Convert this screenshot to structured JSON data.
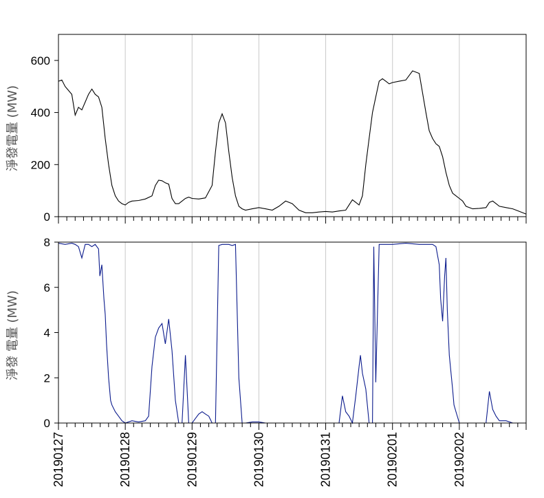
{
  "chart_data": [
    {
      "type": "line",
      "ylabel": "淨發電量 (MW)",
      "ylim": [
        0,
        700
      ],
      "yticks": [
        0,
        200,
        400,
        600
      ],
      "xlim": [
        0,
        7
      ],
      "grid": "vertical at each day",
      "line_color": "#000000",
      "series": [
        {
          "x": [
            0,
            0.05,
            0.1,
            0.2,
            0.25,
            0.3,
            0.35,
            0.4,
            0.45,
            0.5,
            0.55,
            0.6,
            0.65,
            0.7,
            0.75,
            0.8,
            0.85,
            0.9,
            0.95,
            1.0,
            1.05,
            1.1,
            1.2,
            1.3,
            1.4,
            1.45,
            1.5,
            1.55,
            1.6,
            1.65,
            1.7,
            1.75,
            1.8,
            1.85,
            1.9,
            1.95,
            2.0,
            2.1,
            2.2,
            2.3,
            2.35,
            2.4,
            2.45,
            2.5,
            2.55,
            2.6,
            2.65,
            2.7,
            2.75,
            2.8,
            2.9,
            3.0,
            3.1,
            3.2,
            3.3,
            3.4,
            3.5,
            3.6,
            3.7,
            3.8,
            3.9,
            4.0,
            4.1,
            4.2,
            4.3,
            4.4,
            4.45,
            4.5,
            4.55,
            4.6,
            4.65,
            4.7,
            4.75,
            4.8,
            4.85,
            4.9,
            4.95,
            5.0,
            5.1,
            5.2,
            5.3,
            5.4,
            5.5,
            5.55,
            5.6,
            5.65,
            5.7,
            5.75,
            5.8,
            5.85,
            5.9,
            5.95,
            6.0,
            6.05,
            6.1,
            6.2,
            6.3,
            6.4,
            6.45,
            6.5,
            6.55,
            6.6,
            6.7,
            6.8,
            6.9,
            7.0
          ],
          "y": [
            520,
            525,
            500,
            470,
            390,
            420,
            410,
            440,
            470,
            490,
            470,
            460,
            420,
            300,
            200,
            120,
            80,
            60,
            50,
            45,
            55,
            60,
            62,
            68,
            80,
            120,
            140,
            138,
            130,
            125,
            70,
            50,
            50,
            60,
            70,
            75,
            70,
            68,
            72,
            120,
            250,
            360,
            395,
            360,
            250,
            150,
            80,
            40,
            30,
            25,
            30,
            35,
            30,
            25,
            40,
            60,
            50,
            25,
            15,
            15,
            18,
            20,
            18,
            22,
            25,
            65,
            55,
            45,
            80,
            200,
            300,
            400,
            460,
            520,
            530,
            520,
            510,
            515,
            520,
            525,
            560,
            550,
            400,
            330,
            300,
            280,
            270,
            230,
            170,
            120,
            90,
            80,
            70,
            60,
            40,
            30,
            32,
            35,
            55,
            60,
            50,
            40,
            35,
            30,
            20,
            10
          ]
        }
      ]
    },
    {
      "type": "line",
      "ylabel": "淨發 電量 (MW)",
      "ylim": [
        0,
        8
      ],
      "yticks": [
        0,
        2,
        4,
        6,
        8
      ],
      "xlim": [
        0,
        7
      ],
      "grid": "vertical at each day",
      "line_color": "#0a1a8c",
      "categories": [
        "20190127",
        "20190128",
        "20190129",
        "20190130",
        "20190131",
        "20190201",
        "20190202"
      ],
      "series": [
        {
          "x": [
            0,
            0.1,
            0.2,
            0.25,
            0.3,
            0.35,
            0.4,
            0.45,
            0.5,
            0.55,
            0.6,
            0.62,
            0.65,
            0.68,
            0.7,
            0.72,
            0.75,
            0.78,
            0.8,
            0.85,
            0.9,
            0.95,
            1.0,
            1.1,
            1.2,
            1.3,
            1.35,
            1.4,
            1.45,
            1.5,
            1.55,
            1.6,
            1.65,
            1.7,
            1.75,
            1.8,
            1.85,
            1.9,
            1.95,
            2.0,
            2.05,
            2.1,
            2.15,
            2.2,
            2.25,
            2.3,
            2.35,
            2.4,
            2.45,
            2.5,
            2.55,
            2.6,
            2.65,
            2.7,
            2.75,
            2.8,
            2.9,
            3.0,
            3.1,
            3.2,
            3.5,
            3.8,
            4.0,
            4.2,
            4.25,
            4.3,
            4.35,
            4.4,
            4.45,
            4.5,
            4.52,
            4.55,
            4.6,
            4.65,
            4.7,
            4.72,
            4.75,
            4.8,
            5.0,
            5.2,
            5.4,
            5.6,
            5.65,
            5.7,
            5.72,
            5.75,
            5.78,
            5.8,
            5.82,
            5.85,
            5.9,
            5.92,
            5.95,
            6.0,
            6.05,
            6.1,
            6.2,
            6.3,
            6.4,
            6.45,
            6.5,
            6.55,
            6.6,
            6.7,
            6.8,
            6.9,
            7.0
          ],
          "y": [
            7.95,
            7.9,
            7.95,
            7.9,
            7.8,
            7.3,
            7.9,
            7.9,
            7.8,
            7.9,
            7.7,
            6.5,
            7.0,
            5.5,
            4.8,
            3.5,
            2.0,
            1.0,
            0.8,
            0.5,
            0.3,
            0.1,
            0.0,
            0.1,
            0.05,
            0.1,
            0.3,
            2.5,
            3.8,
            4.2,
            4.4,
            3.5,
            4.6,
            3.2,
            1.0,
            0.0,
            0.0,
            3.0,
            0.0,
            0.0,
            0.2,
            0.4,
            0.5,
            0.4,
            0.3,
            0.0,
            0.0,
            7.85,
            7.9,
            7.9,
            7.9,
            7.85,
            7.9,
            2.0,
            0.0,
            0.0,
            0.05,
            0.05,
            0.0,
            0.0,
            0.0,
            0.0,
            0.0,
            0.0,
            1.2,
            0.5,
            0.3,
            0.0,
            1.2,
            2.5,
            3.0,
            2.2,
            1.5,
            0.0,
            0.0,
            7.8,
            1.8,
            7.9,
            7.9,
            7.95,
            7.9,
            7.9,
            7.8,
            7.0,
            5.5,
            4.5,
            6.5,
            7.3,
            5.0,
            3.0,
            1.5,
            0.8,
            0.5,
            0.0,
            0.0,
            0.0,
            0.0,
            0.0,
            0.0,
            1.4,
            0.6,
            0.3,
            0.1,
            0.1,
            0.0,
            0.0,
            0.0
          ]
        }
      ]
    }
  ]
}
